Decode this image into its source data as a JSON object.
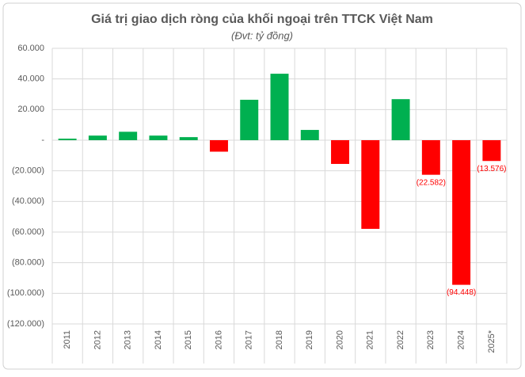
{
  "chart_data": {
    "type": "bar",
    "title": "Giá trị giao dịch ròng của khối ngoại trên TTCK Việt Nam",
    "subtitle": "(Đvt: tỷ đồng)",
    "categories": [
      "2011",
      "2012",
      "2013",
      "2014",
      "2015",
      "2016",
      "2017",
      "2018",
      "2019",
      "2020",
      "2021",
      "2022",
      "2023",
      "2024",
      "2025*"
    ],
    "values": [
      1000,
      3000,
      5500,
      3000,
      2000,
      -7500,
      26400,
      43400,
      6700,
      -15500,
      -57900,
      26800,
      -22582,
      -94448,
      -13576
    ],
    "value_labels": [
      null,
      null,
      null,
      null,
      null,
      null,
      null,
      null,
      null,
      null,
      null,
      null,
      "(22.582)",
      "(94.448)",
      "(13.576)"
    ],
    "positive_color": "#00b050",
    "negative_color": "#ff0000",
    "ylim": [
      -120000,
      60000
    ],
    "yticks": [
      {
        "value": 60000,
        "label": "60.000"
      },
      {
        "value": 40000,
        "label": "40.000"
      },
      {
        "value": 20000,
        "label": "20.000"
      },
      {
        "value": 0,
        "label": "-"
      },
      {
        "value": -20000,
        "label": "(20.000)"
      },
      {
        "value": -40000,
        "label": "(40.000)"
      },
      {
        "value": -60000,
        "label": "(60.000)"
      },
      {
        "value": -80000,
        "label": "(80.000)"
      },
      {
        "value": -100000,
        "label": "(100.000)"
      },
      {
        "value": -120000,
        "label": "(120.000)"
      }
    ],
    "grid": true
  }
}
